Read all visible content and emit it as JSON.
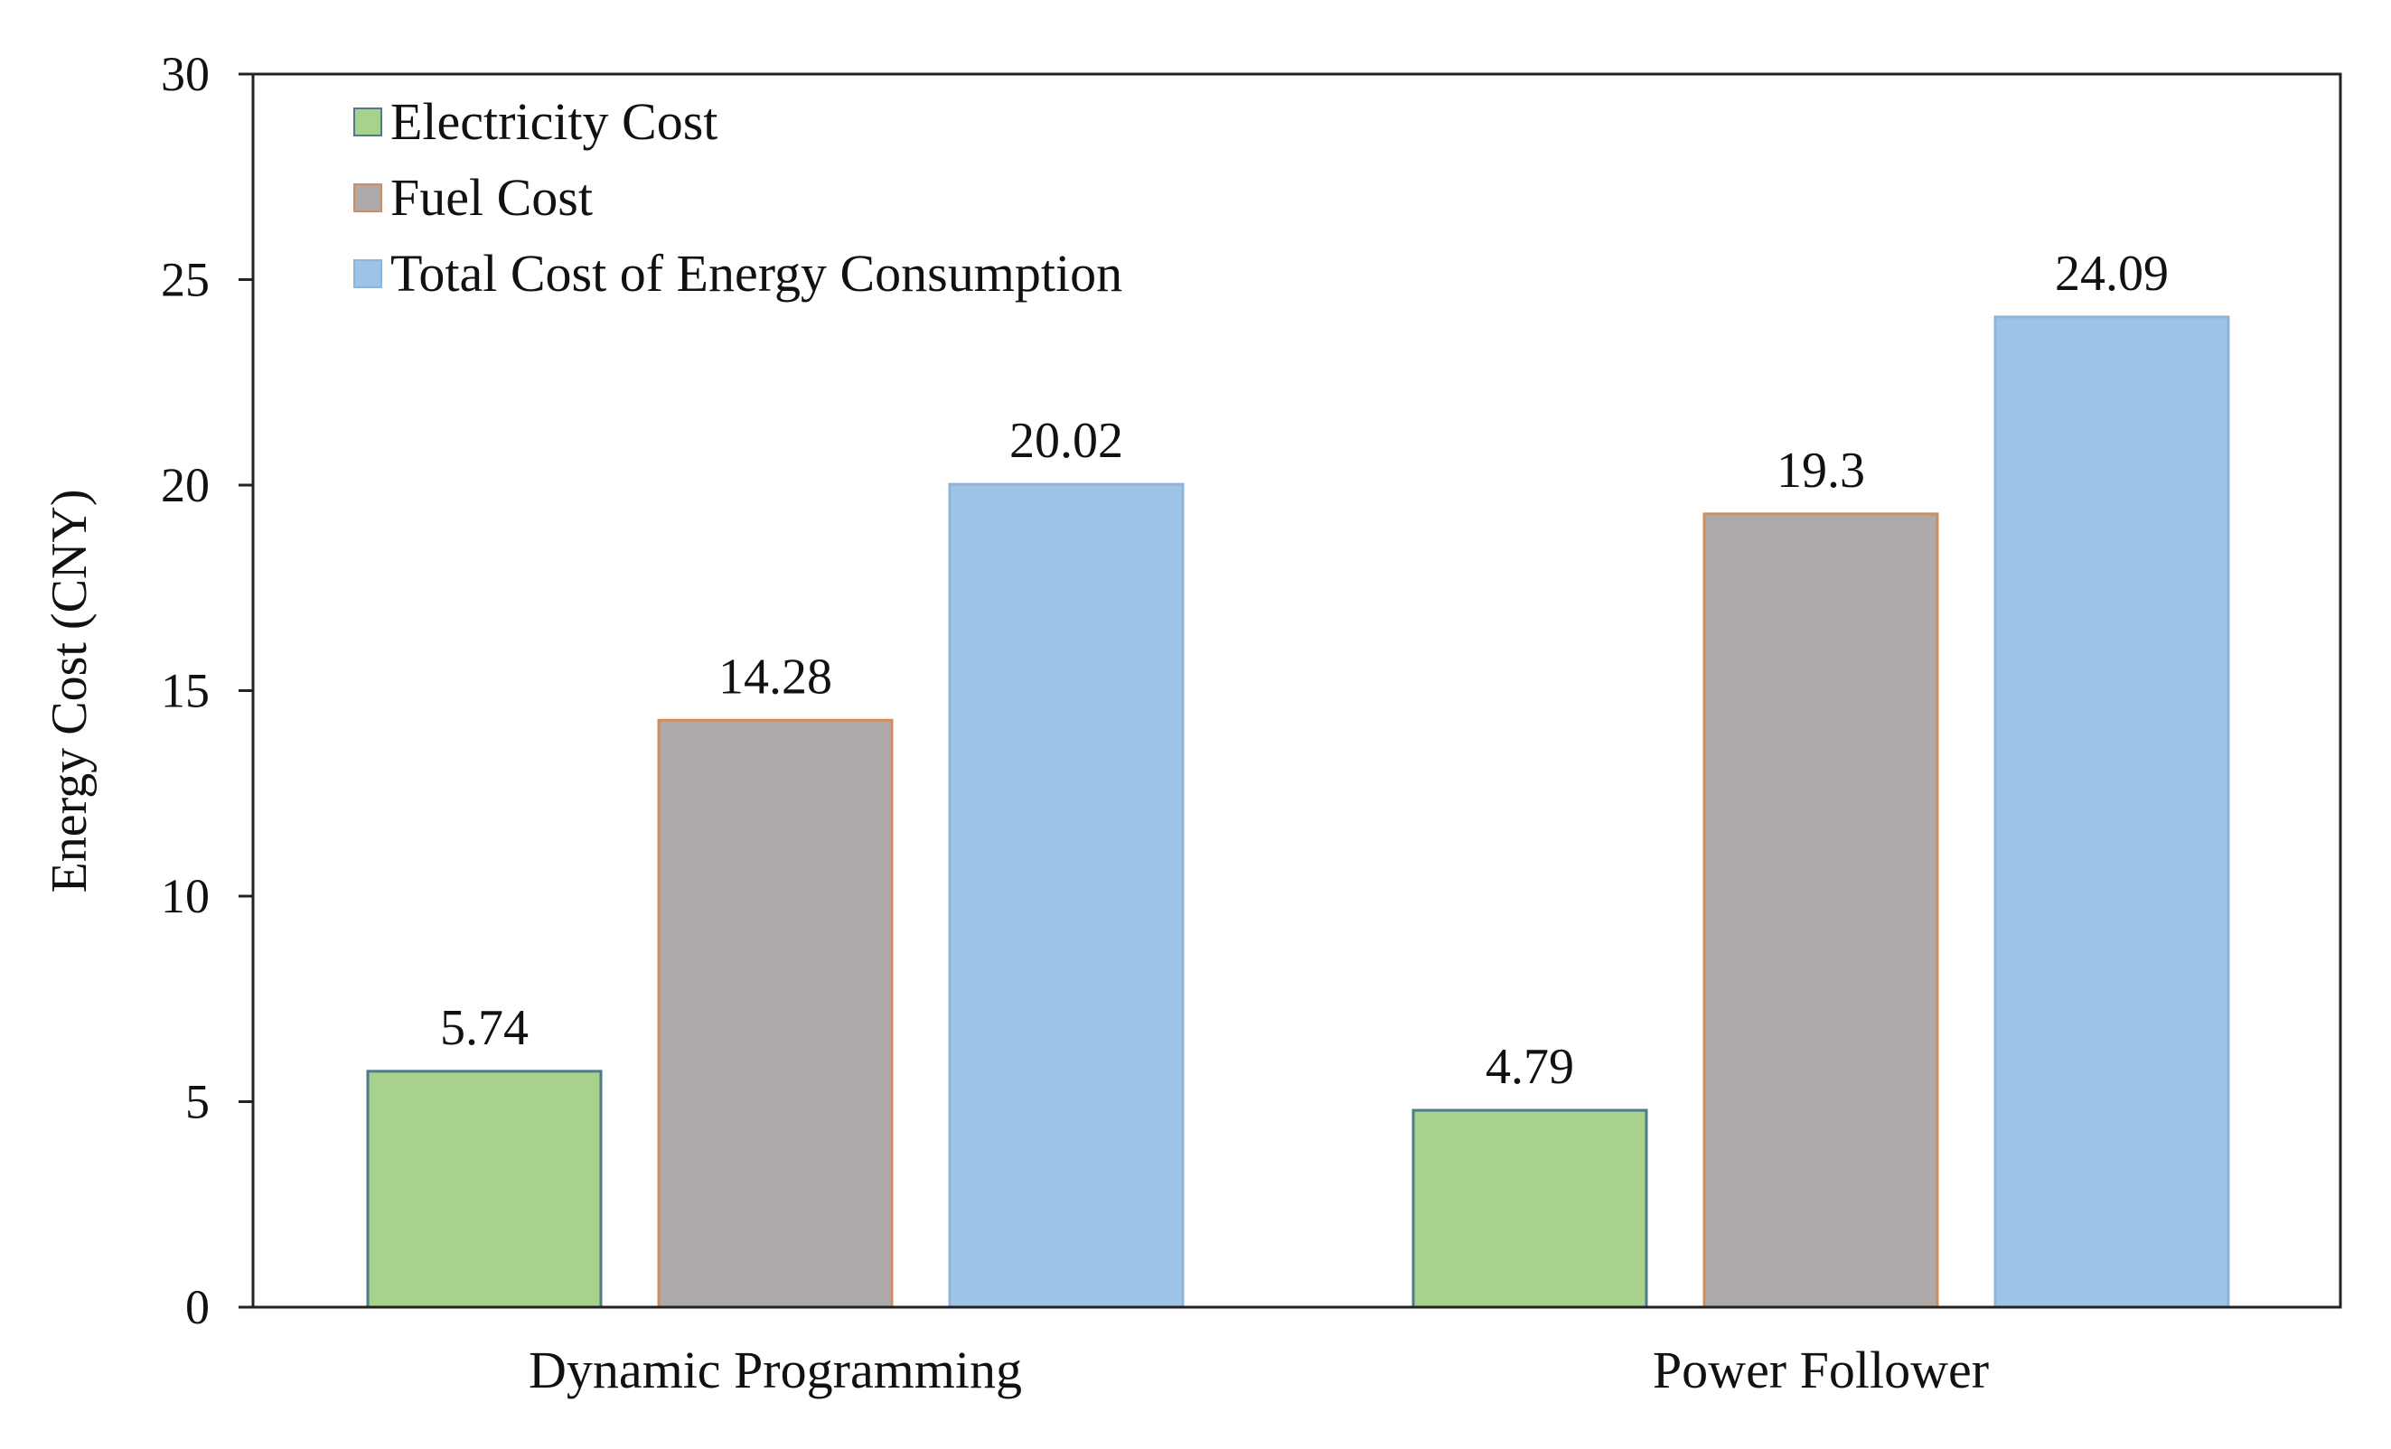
{
  "chart_data": {
    "type": "bar",
    "title": "",
    "xlabel": "",
    "ylabel": "Energy Cost (CNY)",
    "ylim": [
      0,
      30
    ],
    "yticks": [
      0,
      5,
      10,
      15,
      20,
      25,
      30
    ],
    "grid": false,
    "legend_position": "top-left",
    "categories": [
      "Dynamic Programming",
      "Power Follower"
    ],
    "series": [
      {
        "name": "Electricity Cost",
        "values": [
          5.74,
          4.79
        ],
        "labels": [
          "5.74",
          "4.79"
        ],
        "color": "#a9d18e",
        "edge": "#4e7b8a"
      },
      {
        "name": "Fuel Cost",
        "values": [
          14.28,
          19.3
        ],
        "labels": [
          "14.28",
          "19.3"
        ],
        "color": "#aeaaaa",
        "edge": "#d08c5a"
      },
      {
        "name": "Total Cost of Energy Consumption",
        "values": [
          20.02,
          24.09
        ],
        "labels": [
          "20.02",
          "24.09"
        ],
        "color": "#9dc3e6",
        "edge": "#8fb4da"
      }
    ]
  }
}
